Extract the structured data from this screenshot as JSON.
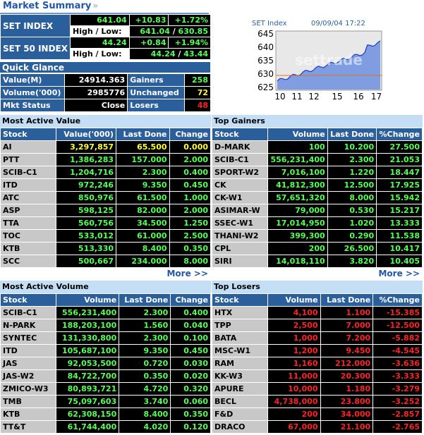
{
  "header": {
    "title": "Market Summary",
    "chevron": "»"
  },
  "summary": {
    "set_index": {
      "label": "SET INDEX",
      "value": "641.04",
      "change": "+10.83",
      "pct": "+1.72%",
      "hl_label": "High / Low:",
      "high": "641.04",
      "low": "630.85"
    },
    "set50_index": {
      "label": "SET 50 INDEX",
      "value": "44.24",
      "change": "+0.84",
      "pct": "+1.94%",
      "hl_label": "High / Low:",
      "high": "44.24",
      "low": "43.44"
    }
  },
  "quick_glance": {
    "title": "Quick Glance",
    "rows": [
      {
        "label": "Value(M)",
        "value": "24914.363",
        "label2": "Gainers",
        "value2": "258"
      },
      {
        "label": "Volume('000)",
        "value": "2985776",
        "label2": "Unchanged",
        "value2": "72"
      },
      {
        "label": "Mkt Status",
        "value": "Close",
        "label2": "Losers",
        "value2": "48"
      }
    ]
  },
  "mini_chart": {
    "label": "SET Index",
    "datetime": "09/09/04 17:22",
    "y_ticks": [
      "645",
      "640",
      "635",
      "630",
      "625"
    ],
    "x_ticks": [
      "10",
      "11",
      "12",
      "15",
      "16",
      "17"
    ],
    "watermark": "settrade",
    "colors": {
      "area": "#6f8fe0",
      "line": "#1a3fc0",
      "ref": "#e07020",
      "bg": "#e8e8e8"
    }
  },
  "most_active_value": {
    "title": "Most Active Value",
    "headers": [
      "Stock",
      "Value('000)",
      "Last Done",
      "Change"
    ],
    "rows": [
      [
        "AI",
        "3,297,857",
        "65.500",
        "0.000"
      ],
      [
        "PTT",
        "1,386,283",
        "157.000",
        "2.000"
      ],
      [
        "SCIB-C1",
        "1,204,716",
        "2.300",
        "0.400"
      ],
      [
        "ITD",
        "972,246",
        "9.350",
        "0.450"
      ],
      [
        "ATC",
        "850,976",
        "61.500",
        "1.000"
      ],
      [
        "ASP",
        "598,125",
        "82.000",
        "2.000"
      ],
      [
        "TTA",
        "560,756",
        "34.500",
        "1.250"
      ],
      [
        "TOC",
        "533,012",
        "61.000",
        "2.500"
      ],
      [
        "KTB",
        "513,330",
        "8.400",
        "0.350"
      ],
      [
        "SCC",
        "500,667",
        "234.000",
        "8.000"
      ]
    ],
    "more": "More >>"
  },
  "top_gainers": {
    "title": "Top Gainers",
    "headers": [
      "Stock",
      "Volume",
      "Last Done",
      "%Change"
    ],
    "rows": [
      [
        "D-MARK",
        "100",
        "10.200",
        "27.500"
      ],
      [
        "SCIB-C1",
        "556,231,400",
        "2.300",
        "21.053"
      ],
      [
        "SPORT-W2",
        "7,016,100",
        "1.220",
        "18.447"
      ],
      [
        "CK",
        "41,812,300",
        "12.500",
        "17.925"
      ],
      [
        "CK-W1",
        "57,651,320",
        "8.000",
        "15.942"
      ],
      [
        "ASIMAR-W",
        "79,000",
        "0.530",
        "15.217"
      ],
      [
        "SSEC-W1",
        "17,014,950",
        "1.020",
        "13.333"
      ],
      [
        "THANI-W2",
        "399,300",
        "0.290",
        "11.538"
      ],
      [
        "CPL",
        "200",
        "26.500",
        "10.417"
      ],
      [
        "SIRI",
        "14,018,110",
        "3.820",
        "10.405"
      ]
    ],
    "more": "More >>"
  },
  "most_active_volume": {
    "title": "Most Active Volume",
    "headers": [
      "Stock",
      "Volume",
      "Last Done",
      "Change"
    ],
    "rows": [
      [
        "SCIB-C1",
        "556,231,400",
        "2.300",
        "0.400"
      ],
      [
        "N-PARK",
        "188,203,100",
        "1.560",
        "0.040"
      ],
      [
        "SYNTEC",
        "131,330,800",
        "2.300",
        "0.100"
      ],
      [
        "ITD",
        "105,687,100",
        "9.350",
        "0.450"
      ],
      [
        "JAS",
        "92,053,500",
        "0.720",
        "0.030"
      ],
      [
        "JAS-W2",
        "84,722,700",
        "0.350",
        "0.020"
      ],
      [
        "ZMICO-W3",
        "80,893,721",
        "4.720",
        "0.320"
      ],
      [
        "TMB",
        "75,097,603",
        "3.740",
        "0.060"
      ],
      [
        "KTB",
        "62,308,150",
        "8.400",
        "0.350"
      ],
      [
        "TT&T",
        "61,744,400",
        "4.020",
        "0.120"
      ]
    ]
  },
  "top_losers": {
    "title": "Top Losers",
    "headers": [
      "Stock",
      "Volume",
      "Last Done",
      "%Change"
    ],
    "rows": [
      [
        "HTX",
        "4,100",
        "1.100",
        "-15.385"
      ],
      [
        "TPP",
        "2,500",
        "7.000",
        "-12.500"
      ],
      [
        "BATA",
        "1,000",
        "7.200",
        "-5.882"
      ],
      [
        "MSC-W1",
        "1,200",
        "9.450",
        "-4.545"
      ],
      [
        "RAM",
        "1,160",
        "212.000",
        "-3.636"
      ],
      [
        "KK-W3",
        "11,000",
        "20.300",
        "-3.333"
      ],
      [
        "APURE",
        "10,000",
        "1.180",
        "-3.279"
      ],
      [
        "BECL",
        "4,738,000",
        "23.800",
        "-3.252"
      ],
      [
        "F&D",
        "200",
        "34.000",
        "-2.857"
      ],
      [
        "DRACO",
        "67,000",
        "21.100",
        "-2.765"
      ]
    ]
  }
}
